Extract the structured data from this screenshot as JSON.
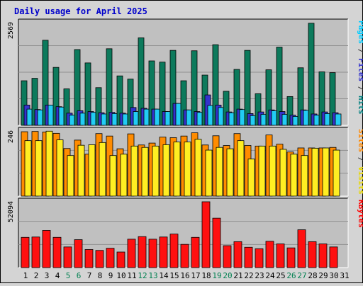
{
  "chart_data": {
    "type": "bar",
    "title": "Daily usage for April 2025",
    "days": [
      "1",
      "2",
      "3",
      "4",
      "5",
      "6",
      "7",
      "8",
      "9",
      "10",
      "11",
      "12",
      "13",
      "14",
      "15",
      "16",
      "17",
      "18",
      "19",
      "20",
      "21",
      "22",
      "23",
      "24",
      "25",
      "26",
      "27",
      "28",
      "29",
      "30",
      "31"
    ],
    "weekend_days": [
      "5",
      "6",
      "12",
      "13",
      "19",
      "20",
      "26",
      "27"
    ],
    "panels": [
      {
        "id": "hits-panel",
        "scale_label": "2569",
        "ymax": 2569,
        "label_parts": [
          {
            "text": "Pages",
            "color": "#00ccff"
          },
          {
            "text": " / ",
            "color": "#333333"
          },
          {
            "text": "Files",
            "color": "#3333cc"
          },
          {
            "text": " / ",
            "color": "#333333"
          },
          {
            "text": "Hits",
            "color": "#008080"
          }
        ],
        "series": [
          {
            "name": "Hits",
            "color": "#0c7a5c",
            "values": [
              1100,
              1160,
              2100,
              1430,
              900,
              1870,
              1540,
              930,
              1890,
              1220,
              1140,
              2160,
              1590,
              1560,
              1850,
              1100,
              1840,
              1240,
              1990,
              840,
              1380,
              1850,
              780,
              1370,
              1930,
              710,
              1420,
              2520,
              1320,
              1300,
              0
            ]
          },
          {
            "name": "Files",
            "color": "#3333cc",
            "values": [
              500,
              390,
              500,
              460,
              300,
              360,
              340,
              310,
              320,
              300,
              440,
              420,
              400,
              340,
              540,
              380,
              340,
              750,
              500,
              330,
              400,
              290,
              330,
              380,
              340,
              250,
              380,
              280,
              330,
              310,
              0
            ]
          },
          {
            "name": "Pages",
            "color": "#22ccf4",
            "values": [
              400,
              380,
              500,
              450,
              250,
              300,
              320,
              280,
              290,
              280,
              340,
              400,
              400,
              340,
              540,
              380,
              320,
              490,
              440,
              310,
              390,
              240,
              270,
              360,
              270,
              220,
              370,
              250,
              290,
              280,
              0
            ]
          }
        ]
      },
      {
        "id": "visits-panel",
        "scale_label": "246",
        "ymax": 246,
        "label_parts": [
          {
            "text": "Sites",
            "color": "#ff8800"
          },
          {
            "text": " / ",
            "color": "#333333"
          },
          {
            "text": "Visits",
            "color": "#e8d800"
          }
        ],
        "series": [
          {
            "name": "Visits",
            "color": "#ff8c00",
            "values": [
              238,
              239,
              237,
              232,
              176,
              207,
              155,
              231,
              222,
              175,
              230,
              189,
              196,
              218,
              216,
              222,
              234,
              189,
              223,
              187,
              231,
              187,
              185,
              226,
              192,
              163,
              178,
              178,
              178,
              180,
              0
            ]
          },
          {
            "name": "Sites",
            "color": "#ffee22",
            "values": [
              205,
              205,
              240,
              208,
              150,
              188,
              190,
              198,
              150,
              155,
              185,
              180,
              185,
              190,
              200,
              200,
              210,
              170,
              180,
              175,
              205,
              137,
              185,
              185,
              173,
              155,
              150,
              177,
              178,
              170,
              0
            ]
          }
        ]
      },
      {
        "id": "kbytes-panel",
        "scale_label": "52094",
        "ymax": 52094,
        "label_parts": [
          {
            "text": "KBytes",
            "color": "#ff0000"
          }
        ],
        "series": [
          {
            "name": "KBytes",
            "color": "#ff1010",
            "values": [
              23440,
              23700,
              28800,
              23440,
              16000,
              21640,
              14000,
              13300,
              15000,
              12060,
              22000,
              24000,
              22000,
              23700,
              26000,
              18000,
              23440,
              51000,
              38300,
              17000,
              20100,
              15750,
              14600,
              20400,
              18360,
              15280,
              29300,
              20100,
              18360,
              16000,
              0
            ]
          }
        ]
      }
    ]
  }
}
